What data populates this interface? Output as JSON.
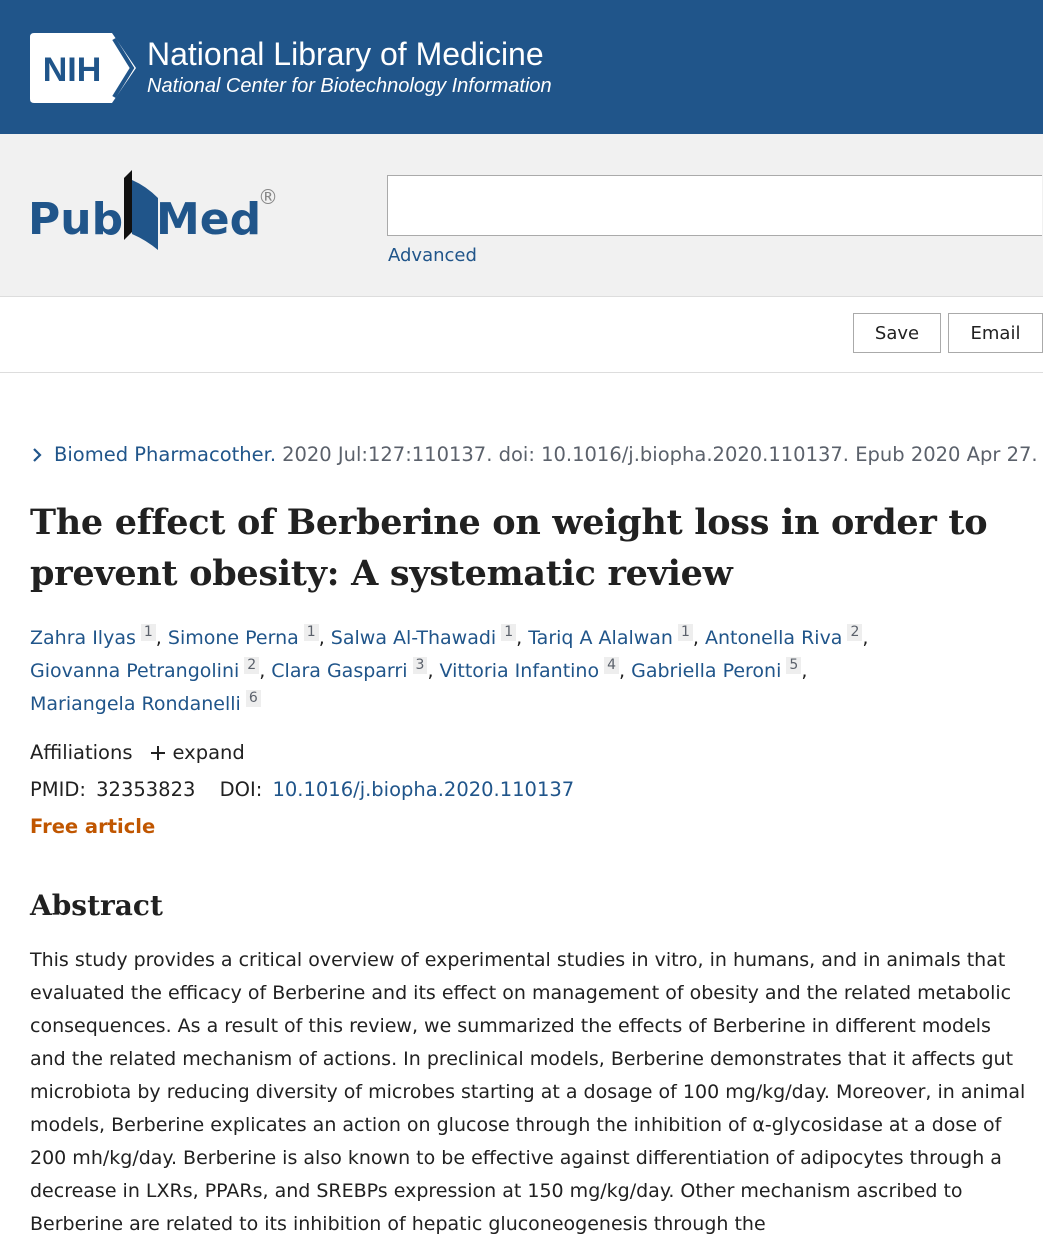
{
  "header": {
    "nih_logo": "NIH",
    "title": "National Library of Medicine",
    "subtitle": "National Center for Biotechnology Information"
  },
  "search": {
    "logo_left": "Pub",
    "logo_right": "Med",
    "registered": "®",
    "advanced": "Advanced"
  },
  "actions": [
    "Save",
    "Email"
  ],
  "citation": {
    "journal": "Biomed Pharmacother.",
    "details": "2020 Jul:127:110137. doi: 10.1016/j.biopha.2020.110137. Epub 2020 Apr 27."
  },
  "article": {
    "title": "The effect of Berberine on weight loss in order to prevent obesity: A systematic review",
    "author_separator": ",",
    "authors": [
      {
        "name": "Zahra Ilyas",
        "affiliation": "1"
      },
      {
        "name": "Simone Perna",
        "affiliation": "1"
      },
      {
        "name": "Salwa Al-Thawadi",
        "affiliation": "1"
      },
      {
        "name": "Tariq A Alalwan",
        "affiliation": "1"
      },
      {
        "name": "Antonella Riva",
        "affiliation": "2"
      },
      {
        "name": "Giovanna Petrangolini",
        "affiliation": "2"
      },
      {
        "name": "Clara Gasparri",
        "affiliation": "3"
      },
      {
        "name": "Vittoria Infantino",
        "affiliation": "4"
      },
      {
        "name": "Gabriella Peroni",
        "affiliation": "5"
      },
      {
        "name": "Mariangela Rondanelli",
        "affiliation": "6"
      }
    ],
    "affiliations_label": "Affiliations",
    "expand": "expand",
    "pmid_label": "PMID:",
    "pmid": "32353823",
    "doi_label": "DOI:",
    "doi": "10.1016/j.biopha.2020.110137",
    "free": "Free article"
  },
  "abstract": {
    "heading": "Abstract",
    "text": "This study provides a critical overview of experimental studies in vitro, in humans, and in animals that evaluated the efficacy of Berberine and its effect on management of obesity and the related metabolic consequences. As a result of this review, we summarized the effects of Berberine in different models and the related mechanism of actions. In preclinical models, Berberine demonstrates that it affects gut microbiota by reducing diversity of microbes starting at a dosage of 100 mg/kg/day. Moreover, in animal models, Berberine explicates an action on glucose through the inhibition of α-glycosidase at a dose of 200 mh/kg/day. Berberine is also known to be effective against differentiation of adipocytes through a decrease in LXRs, PPARs, and SREBPs expression at 150 mg/kg/day. Other mechanism ascribed to Berberine are related to its inhibition of hepatic gluconeogenesis through the"
  }
}
